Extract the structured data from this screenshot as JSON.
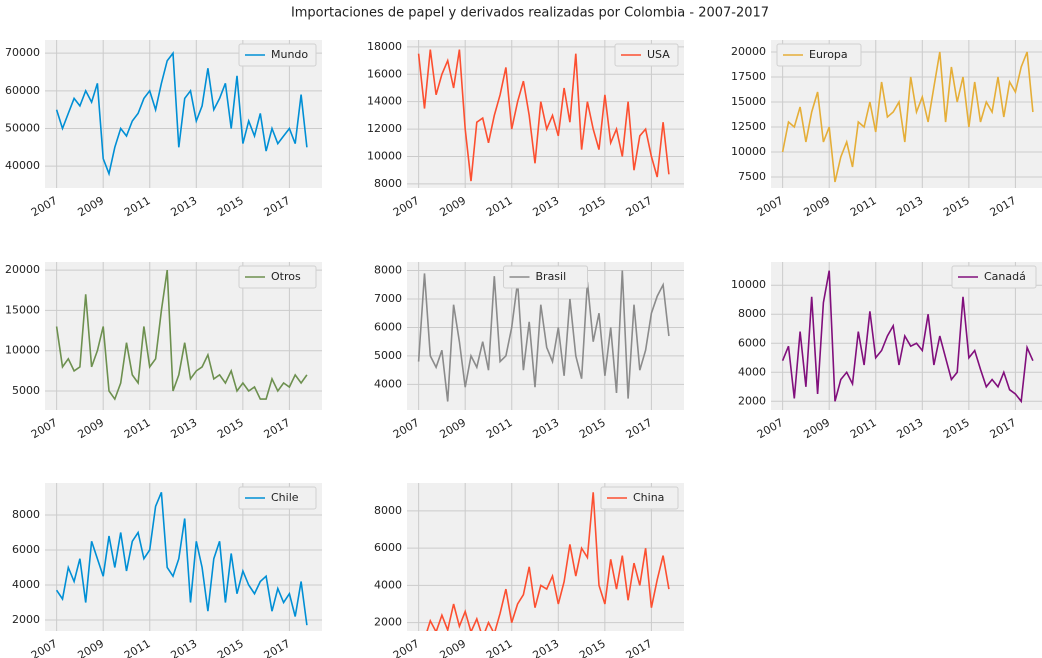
{
  "title": "Importaciones de papel y derivados realizadas por Colombia - 2007-2017",
  "chart_data": [
    {
      "type": "line",
      "legend": "upper right",
      "grid": true,
      "x": [
        2007,
        2007.25,
        2007.5,
        2007.75,
        2008,
        2008.25,
        2008.5,
        2008.75,
        2009,
        2009.25,
        2009.5,
        2009.75,
        2010,
        2010.25,
        2010.5,
        2010.75,
        2011,
        2011.25,
        2011.5,
        2011.75,
        2012,
        2012.25,
        2012.5,
        2012.75,
        2013,
        2013.25,
        2013.5,
        2013.75,
        2014,
        2014.25,
        2014.5,
        2014.75,
        2015,
        2015.25,
        2015.5,
        2015.75,
        2016,
        2016.25,
        2016.5,
        2016.75,
        2017,
        2017.25,
        2017.5,
        2017.75
      ],
      "xlim": [
        2006.5,
        2018.4
      ],
      "xticks": [
        2007,
        2009,
        2011,
        2013,
        2015,
        2017
      ],
      "ylim": [
        34200,
        73500
      ],
      "yticks": [
        40000,
        50000,
        60000,
        70000
      ],
      "series": [
        {
          "name": "Mundo",
          "color": "#008fd5",
          "values": [
            55000,
            50000,
            54000,
            58000,
            56000,
            60000,
            57000,
            62000,
            42000,
            38000,
            45000,
            50000,
            48000,
            52000,
            54000,
            58000,
            60000,
            55000,
            62000,
            68000,
            70000,
            45000,
            58000,
            60000,
            52000,
            56000,
            66000,
            55000,
            58000,
            62000,
            50000,
            64000,
            46000,
            52000,
            48000,
            54000,
            44000,
            50000,
            46000,
            48000,
            50000,
            46000,
            59000,
            45000
          ]
        }
      ]
    },
    {
      "type": "line",
      "legend": "upper right",
      "grid": true,
      "x": [
        2007,
        2007.25,
        2007.5,
        2007.75,
        2008,
        2008.25,
        2008.5,
        2008.75,
        2009,
        2009.25,
        2009.5,
        2009.75,
        2010,
        2010.25,
        2010.5,
        2010.75,
        2011,
        2011.25,
        2011.5,
        2011.75,
        2012,
        2012.25,
        2012.5,
        2012.75,
        2013,
        2013.25,
        2013.5,
        2013.75,
        2014,
        2014.25,
        2014.5,
        2014.75,
        2015,
        2015.25,
        2015.5,
        2015.75,
        2016,
        2016.25,
        2016.5,
        2016.75,
        2017,
        2017.25,
        2017.5,
        2017.75
      ],
      "xlim": [
        2006.5,
        2018.4
      ],
      "xticks": [
        2007,
        2009,
        2011,
        2013,
        2015,
        2017
      ],
      "ylim": [
        7700,
        18500
      ],
      "yticks": [
        8000,
        10000,
        12000,
        14000,
        16000,
        18000
      ],
      "series": [
        {
          "name": "USA",
          "color": "#fc4f30",
          "values": [
            17500,
            13500,
            17800,
            14500,
            16000,
            17000,
            15000,
            17800,
            12000,
            8200,
            12500,
            12800,
            11000,
            13000,
            14500,
            16500,
            12000,
            14000,
            15500,
            13000,
            9500,
            14000,
            12000,
            13000,
            11500,
            15000,
            12500,
            17500,
            10500,
            14000,
            12000,
            10500,
            14500,
            11000,
            12000,
            10000,
            14000,
            9000,
            11500,
            12000,
            10000,
            8500,
            12500,
            8700
          ]
        }
      ]
    },
    {
      "type": "line",
      "legend": "upper left",
      "grid": true,
      "x": [
        2007,
        2007.25,
        2007.5,
        2007.75,
        2008,
        2008.25,
        2008.5,
        2008.75,
        2009,
        2009.25,
        2009.5,
        2009.75,
        2010,
        2010.25,
        2010.5,
        2010.75,
        2011,
        2011.25,
        2011.5,
        2011.75,
        2012,
        2012.25,
        2012.5,
        2012.75,
        2013,
        2013.25,
        2013.5,
        2013.75,
        2014,
        2014.25,
        2014.5,
        2014.75,
        2015,
        2015.25,
        2015.5,
        2015.75,
        2016,
        2016.25,
        2016.5,
        2016.75,
        2017,
        2017.25,
        2017.5,
        2017.75
      ],
      "xlim": [
        2006.5,
        2018.4
      ],
      "xticks": [
        2007,
        2009,
        2011,
        2013,
        2015,
        2017
      ],
      "ylim": [
        6400,
        21200
      ],
      "yticks": [
        7500,
        10000,
        12500,
        15000,
        17500,
        20000
      ],
      "series": [
        {
          "name": "Europa",
          "color": "#e5ae38",
          "values": [
            10000,
            13000,
            12500,
            14500,
            11000,
            14000,
            16000,
            11000,
            12500,
            7000,
            9500,
            11000,
            8500,
            13000,
            12500,
            15000,
            12000,
            17000,
            13500,
            14000,
            15000,
            11000,
            17500,
            14000,
            15500,
            13000,
            16500,
            20000,
            13000,
            18500,
            15000,
            17500,
            12500,
            17000,
            13000,
            15000,
            14000,
            17500,
            13500,
            17000,
            16000,
            18500,
            20000,
            14000
          ]
        }
      ]
    },
    {
      "type": "line",
      "legend": "upper right",
      "grid": true,
      "x": [
        2007,
        2007.25,
        2007.5,
        2007.75,
        2008,
        2008.25,
        2008.5,
        2008.75,
        2009,
        2009.25,
        2009.5,
        2009.75,
        2010,
        2010.25,
        2010.5,
        2010.75,
        2011,
        2011.25,
        2011.5,
        2011.75,
        2012,
        2012.25,
        2012.5,
        2012.75,
        2013,
        2013.25,
        2013.5,
        2013.75,
        2014,
        2014.25,
        2014.5,
        2014.75,
        2015,
        2015.25,
        2015.5,
        2015.75,
        2016,
        2016.25,
        2016.5,
        2016.75,
        2017,
        2017.25,
        2017.5,
        2017.75
      ],
      "xlim": [
        2006.5,
        2018.4
      ],
      "xticks": [
        2007,
        2009,
        2011,
        2013,
        2015,
        2017
      ],
      "ylim": [
        2650,
        21000
      ],
      "yticks": [
        5000,
        10000,
        15000,
        20000
      ],
      "series": [
        {
          "name": "Otros",
          "color": "#6d904f",
          "values": [
            13000,
            8000,
            9000,
            7500,
            8000,
            17000,
            8000,
            10000,
            13000,
            5000,
            4000,
            6000,
            11000,
            7000,
            6000,
            13000,
            8000,
            9000,
            15000,
            20000,
            5000,
            7000,
            11000,
            6500,
            7500,
            8000,
            9500,
            6500,
            7000,
            6000,
            7500,
            5000,
            6000,
            5000,
            5500,
            4000,
            4000,
            6500,
            5000,
            6000,
            5500,
            7000,
            6000,
            7000
          ]
        }
      ]
    },
    {
      "type": "line",
      "legend": "upper center",
      "grid": true,
      "x": [
        2007,
        2007.25,
        2007.5,
        2007.75,
        2008,
        2008.25,
        2008.5,
        2008.75,
        2009,
        2009.25,
        2009.5,
        2009.75,
        2010,
        2010.25,
        2010.5,
        2010.75,
        2011,
        2011.25,
        2011.5,
        2011.75,
        2012,
        2012.25,
        2012.5,
        2012.75,
        2013,
        2013.25,
        2013.5,
        2013.75,
        2014,
        2014.25,
        2014.5,
        2014.75,
        2015,
        2015.25,
        2015.5,
        2015.75,
        2016,
        2016.25,
        2016.5,
        2016.75,
        2017,
        2017.25,
        2017.5,
        2017.75
      ],
      "xlim": [
        2006.5,
        2018.4
      ],
      "xticks": [
        2007,
        2009,
        2011,
        2013,
        2015,
        2017
      ],
      "ylim": [
        3100,
        8300
      ],
      "yticks": [
        4000,
        5000,
        6000,
        7000,
        8000
      ],
      "series": [
        {
          "name": "Brasil",
          "color": "#8b8b8b",
          "values": [
            4800,
            7900,
            5000,
            4600,
            5200,
            3400,
            6800,
            5500,
            3900,
            5000,
            4600,
            5500,
            4500,
            7800,
            4800,
            5000,
            6000,
            7600,
            4500,
            6200,
            3900,
            6800,
            5300,
            4800,
            6000,
            4300,
            7000,
            5000,
            4200,
            7600,
            5500,
            6500,
            4300,
            6000,
            3700,
            8000,
            3500,
            6800,
            4500,
            5200,
            6500,
            7100,
            7500,
            5700
          ]
        }
      ]
    },
    {
      "type": "line",
      "legend": "upper right",
      "grid": true,
      "x": [
        2007,
        2007.25,
        2007.5,
        2007.75,
        2008,
        2008.25,
        2008.5,
        2008.75,
        2009,
        2009.25,
        2009.5,
        2009.75,
        2010,
        2010.25,
        2010.5,
        2010.75,
        2011,
        2011.25,
        2011.5,
        2011.75,
        2012,
        2012.25,
        2012.5,
        2012.75,
        2013,
        2013.25,
        2013.5,
        2013.75,
        2014,
        2014.25,
        2014.5,
        2014.75,
        2015,
        2015.25,
        2015.5,
        2015.75,
        2016,
        2016.25,
        2016.5,
        2016.75,
        2017,
        2017.25,
        2017.5,
        2017.75
      ],
      "xlim": [
        2006.5,
        2018.4
      ],
      "xticks": [
        2007,
        2009,
        2011,
        2013,
        2015,
        2017
      ],
      "ylim": [
        1400,
        11600
      ],
      "yticks": [
        2000,
        4000,
        6000,
        8000,
        10000
      ],
      "series": [
        {
          "name": "Canadá",
          "color": "#810f7c",
          "values": [
            4800,
            5800,
            2200,
            6800,
            3000,
            9200,
            2500,
            8800,
            11000,
            2000,
            3500,
            4000,
            3200,
            6800,
            4500,
            8200,
            5000,
            5500,
            6500,
            7200,
            4500,
            6500,
            5800,
            6000,
            5500,
            8000,
            4500,
            6500,
            5000,
            3500,
            4000,
            9200,
            5000,
            5500,
            4200,
            3000,
            3500,
            3000,
            4000,
            2800,
            2500,
            2000,
            5700,
            4800
          ]
        }
      ]
    },
    {
      "type": "line",
      "legend": "upper right",
      "grid": true,
      "x": [
        2007,
        2007.25,
        2007.5,
        2007.75,
        2008,
        2008.25,
        2008.5,
        2008.75,
        2009,
        2009.25,
        2009.5,
        2009.75,
        2010,
        2010.25,
        2010.5,
        2010.75,
        2011,
        2011.25,
        2011.5,
        2011.75,
        2012,
        2012.25,
        2012.5,
        2012.75,
        2013,
        2013.25,
        2013.5,
        2013.75,
        2014,
        2014.25,
        2014.5,
        2014.75,
        2015,
        2015.25,
        2015.5,
        2015.75,
        2016,
        2016.25,
        2016.5,
        2016.75,
        2017,
        2017.25,
        2017.5,
        2017.75
      ],
      "xlim": [
        2006.5,
        2018.4
      ],
      "xticks": [
        2007,
        2009,
        2011,
        2013,
        2015,
        2017
      ],
      "ylim": [
        1370,
        9830
      ],
      "yticks": [
        2000,
        4000,
        6000,
        8000
      ],
      "series": [
        {
          "name": "Chile",
          "color": "#008fd5",
          "values": [
            3700,
            3200,
            5000,
            4200,
            5500,
            3000,
            6500,
            5500,
            4500,
            6800,
            5000,
            7000,
            4800,
            6500,
            7000,
            5500,
            6000,
            8500,
            9300,
            5000,
            4500,
            5500,
            7800,
            3000,
            6500,
            5000,
            2500,
            5500,
            6500,
            3000,
            5800,
            3500,
            4800,
            4000,
            3500,
            4200,
            4500,
            2500,
            3800,
            3000,
            3500,
            2200,
            4200,
            1700
          ]
        }
      ]
    },
    {
      "type": "line",
      "legend": "upper right",
      "grid": true,
      "x": [
        2007,
        2007.25,
        2007.5,
        2007.75,
        2008,
        2008.25,
        2008.5,
        2008.75,
        2009,
        2009.25,
        2009.5,
        2009.75,
        2010,
        2010.25,
        2010.5,
        2010.75,
        2011,
        2011.25,
        2011.5,
        2011.75,
        2012,
        2012.25,
        2012.5,
        2012.75,
        2013,
        2013.25,
        2013.5,
        2013.75,
        2014,
        2014.25,
        2014.5,
        2014.75,
        2015,
        2015.25,
        2015.5,
        2015.75,
        2016,
        2016.25,
        2016.5,
        2016.75,
        2017,
        2017.25,
        2017.5,
        2017.75
      ],
      "xlim": [
        2006.5,
        2018.4
      ],
      "xticks": [
        2007,
        2009,
        2011,
        2013,
        2015,
        2017
      ],
      "ylim": [
        1550,
        9500
      ],
      "yticks": [
        2000,
        4000,
        6000,
        8000
      ],
      "series": [
        {
          "name": "China",
          "color": "#fc4f30",
          "values": [
            1500,
            1100,
            2100,
            1500,
            2400,
            1600,
            3000,
            1800,
            2600,
            1500,
            2200,
            1200,
            2000,
            1400,
            2500,
            3800,
            2000,
            3000,
            3500,
            5000,
            2800,
            4000,
            3800,
            4500,
            3000,
            4200,
            6200,
            4500,
            6000,
            5500,
            9000,
            4000,
            3000,
            5400,
            3800,
            5600,
            3200,
            5200,
            4000,
            6000,
            2800,
            4300,
            5600,
            3800
          ]
        }
      ]
    }
  ]
}
